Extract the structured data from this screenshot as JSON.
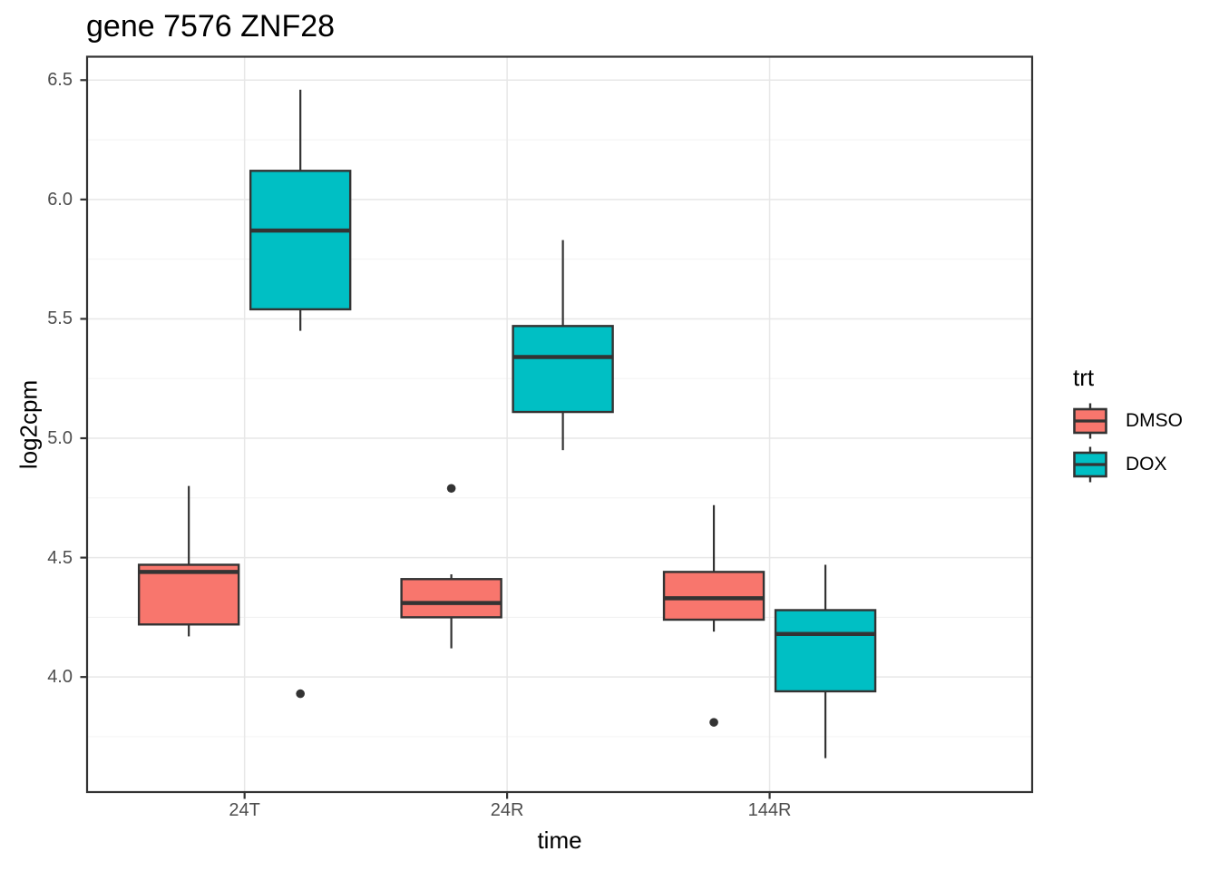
{
  "chart_data": {
    "type": "boxplot",
    "title": "gene 7576 ZNF28",
    "xlabel": "time",
    "ylabel": "log2cpm",
    "categories": [
      "24T",
      "24R",
      "144R"
    ],
    "y_ticks": [
      4.0,
      4.5,
      5.0,
      5.5,
      6.0,
      6.5
    ],
    "y_ticks_minor": [
      3.75,
      4.25,
      4.75,
      5.25,
      5.75,
      6.25
    ],
    "ylim": [
      3.518,
      6.598
    ],
    "grid": true,
    "legend": {
      "title": "trt",
      "position": "right",
      "entries": [
        {
          "label": "DMSO",
          "color": "#F8766D"
        },
        {
          "label": "DOX",
          "color": "#00BFC4"
        }
      ]
    },
    "series": [
      {
        "name": "DMSO",
        "color": "#F8766D",
        "boxes": [
          {
            "category": "24T",
            "whisker_low": 4.17,
            "q1": 4.22,
            "median": 4.44,
            "q3": 4.47,
            "whisker_high": 4.8,
            "outliers": []
          },
          {
            "category": "24R",
            "whisker_low": 4.12,
            "q1": 4.25,
            "median": 4.31,
            "q3": 4.41,
            "whisker_high": 4.43,
            "outliers": [
              4.79
            ]
          },
          {
            "category": "144R",
            "whisker_low": 4.19,
            "q1": 4.24,
            "median": 4.33,
            "q3": 4.44,
            "whisker_high": 4.72,
            "outliers": [
              3.81
            ]
          }
        ]
      },
      {
        "name": "DOX",
        "color": "#00BFC4",
        "boxes": [
          {
            "category": "24T",
            "whisker_low": 5.45,
            "q1": 5.54,
            "median": 5.87,
            "q3": 6.12,
            "whisker_high": 6.46,
            "outliers": [
              3.93
            ]
          },
          {
            "category": "24R",
            "whisker_low": 4.95,
            "q1": 5.11,
            "median": 5.34,
            "q3": 5.47,
            "whisker_high": 5.83,
            "outliers": []
          },
          {
            "category": "144R",
            "whisker_low": 3.66,
            "q1": 3.94,
            "median": 4.18,
            "q3": 4.28,
            "whisker_high": 4.47,
            "outliers": []
          }
        ]
      }
    ],
    "style": {
      "box_outline": "#333333",
      "median_color": "#333333",
      "whisker_color": "#333333",
      "outlier_color": "#333333",
      "panel_border": "#333333",
      "tick_color": "#333333",
      "grid_major": "#e7e7e7",
      "grid_minor": "#f0f0f0",
      "tick_label_color": "#4d4d4d",
      "background": "#ffffff"
    }
  }
}
